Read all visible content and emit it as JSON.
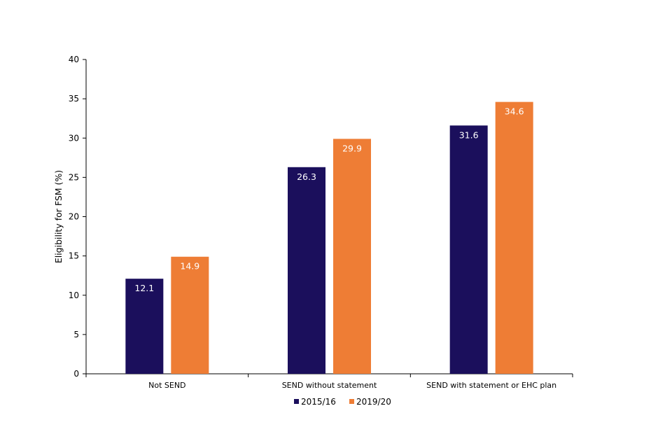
{
  "chart_data": {
    "type": "bar",
    "categories": [
      "Not SEND",
      "SEND without statement",
      "SEND with statement or EHC plan"
    ],
    "series": [
      {
        "name": "2015/16",
        "values": [
          12.1,
          26.3,
          31.6
        ],
        "color": "#1b0f5c"
      },
      {
        "name": "2019/20",
        "values": [
          14.9,
          29.9,
          34.6
        ],
        "color": "#ee7d35"
      }
    ],
    "ylabel": "Eligibility for FSM (%)",
    "ylim": [
      0,
      40
    ],
    "yticks": [
      0,
      5,
      10,
      15,
      20,
      25,
      30,
      35,
      40
    ],
    "grid": false,
    "legend_position": "bottom",
    "data_labels": true
  }
}
